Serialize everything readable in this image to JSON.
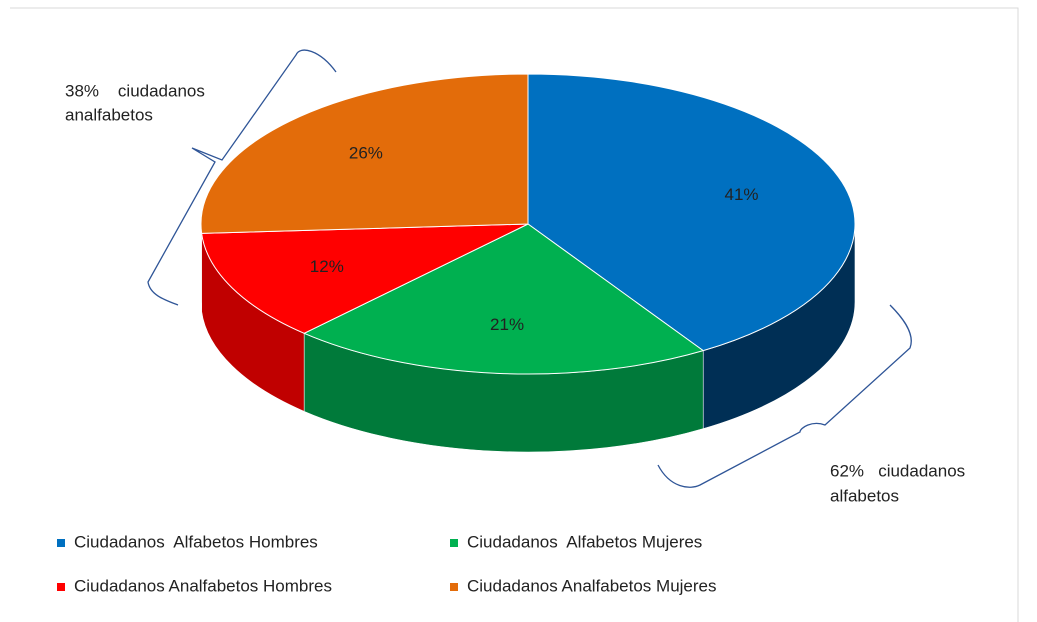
{
  "chart_data": {
    "type": "pie3d",
    "categories": [
      "Ciudadanos  Alfabetos Hombres",
      "Ciudadanos  Alfabetos Mujeres",
      "Ciudadanos Analfabetos Hombres",
      "Ciudadanos Analfabetos Mujeres"
    ],
    "values": [
      41,
      21,
      12,
      26
    ],
    "value_labels": [
      "41%",
      "21%",
      "12%",
      "26%"
    ],
    "colors": [
      "#0070c0",
      "#00b050",
      "#ff0000",
      "#e36c0a"
    ],
    "side_colors": [
      "#002f55",
      "#007a3a",
      "#c00000",
      "#a84e06"
    ],
    "annotations": [
      {
        "lines": [
          "38%    ciudadanos",
          "analfabetos"
        ]
      },
      {
        "lines": [
          "62%   ciudadanos",
          "alfabetos"
        ]
      }
    ],
    "legend": "bottom"
  }
}
